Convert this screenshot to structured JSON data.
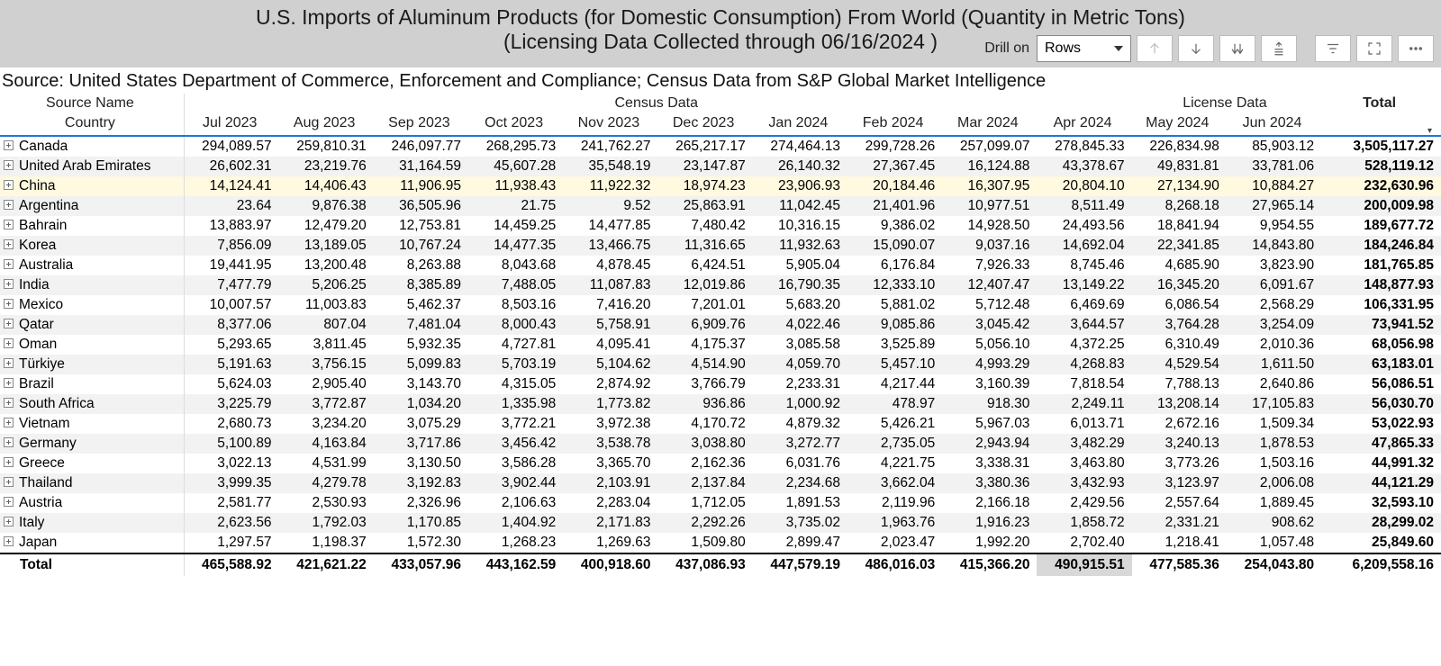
{
  "title": {
    "line1": "U.S. Imports of Aluminum Products (for Domestic Consumption) From World  (Quantity in Metric Tons)",
    "line2": "(Licensing Data Collected through 06/16/2024 )"
  },
  "toolbar": {
    "drill_label": "Drill on",
    "drill_value": "Rows"
  },
  "source": "Source: United States Department of Commerce, Enforcement and Compliance; Census Data from S&P Global Market Intelligence",
  "headers": {
    "left_top": "Source Name",
    "left_bottom": "Country",
    "census_group": "Census Data",
    "license_group": "License Data",
    "total": "Total",
    "months": [
      "Jul 2023",
      "Aug 2023",
      "Sep 2023",
      "Oct 2023",
      "Nov 2023",
      "Dec 2023",
      "Jan 2024",
      "Feb 2024",
      "Mar 2024",
      "Apr 2024",
      "May 2024",
      "Jun 2024"
    ]
  },
  "highlight_row_index": 2,
  "rows": [
    {
      "country": "Canada",
      "v": [
        "294,089.57",
        "259,810.31",
        "246,097.77",
        "268,295.73",
        "241,762.27",
        "265,217.17",
        "274,464.13",
        "299,728.26",
        "257,099.07",
        "278,845.33",
        "226,834.98",
        "85,903.12"
      ],
      "total": "3,505,117.27"
    },
    {
      "country": "United Arab Emirates",
      "v": [
        "26,602.31",
        "23,219.76",
        "31,164.59",
        "45,607.28",
        "35,548.19",
        "23,147.87",
        "26,140.32",
        "27,367.45",
        "16,124.88",
        "43,378.67",
        "49,831.81",
        "33,781.06"
      ],
      "total": "528,119.12"
    },
    {
      "country": "China",
      "v": [
        "14,124.41",
        "14,406.43",
        "11,906.95",
        "11,938.43",
        "11,922.32",
        "18,974.23",
        "23,906.93",
        "20,184.46",
        "16,307.95",
        "20,804.10",
        "27,134.90",
        "10,884.27"
      ],
      "total": "232,630.96"
    },
    {
      "country": "Argentina",
      "v": [
        "23.64",
        "9,876.38",
        "36,505.96",
        "21.75",
        "9.52",
        "25,863.91",
        "11,042.45",
        "21,401.96",
        "10,977.51",
        "8,511.49",
        "8,268.18",
        "27,965.14"
      ],
      "total": "200,009.98"
    },
    {
      "country": "Bahrain",
      "v": [
        "13,883.97",
        "12,479.20",
        "12,753.81",
        "14,459.25",
        "14,477.85",
        "7,480.42",
        "10,316.15",
        "9,386.02",
        "14,928.50",
        "24,493.56",
        "18,841.94",
        "9,954.55"
      ],
      "total": "189,677.72"
    },
    {
      "country": "Korea",
      "v": [
        "7,856.09",
        "13,189.05",
        "10,767.24",
        "14,477.35",
        "13,466.75",
        "11,316.65",
        "11,932.63",
        "15,090.07",
        "9,037.16",
        "14,692.04",
        "22,341.85",
        "14,843.80"
      ],
      "total": "184,246.84"
    },
    {
      "country": "Australia",
      "v": [
        "19,441.95",
        "13,200.48",
        "8,263.88",
        "8,043.68",
        "4,878.45",
        "6,424.51",
        "5,905.04",
        "6,176.84",
        "7,926.33",
        "8,745.46",
        "4,685.90",
        "3,823.90"
      ],
      "total": "181,765.85"
    },
    {
      "country": "India",
      "v": [
        "7,477.79",
        "5,206.25",
        "8,385.89",
        "7,488.05",
        "11,087.83",
        "12,019.86",
        "16,790.35",
        "12,333.10",
        "12,407.47",
        "13,149.22",
        "16,345.20",
        "6,091.67"
      ],
      "total": "148,877.93"
    },
    {
      "country": "Mexico",
      "v": [
        "10,007.57",
        "11,003.83",
        "5,462.37",
        "8,503.16",
        "7,416.20",
        "7,201.01",
        "5,683.20",
        "5,881.02",
        "5,712.48",
        "6,469.69",
        "6,086.54",
        "2,568.29"
      ],
      "total": "106,331.95"
    },
    {
      "country": "Qatar",
      "v": [
        "8,377.06",
        "807.04",
        "7,481.04",
        "8,000.43",
        "5,758.91",
        "6,909.76",
        "4,022.46",
        "9,085.86",
        "3,045.42",
        "3,644.57",
        "3,764.28",
        "3,254.09"
      ],
      "total": "73,941.52"
    },
    {
      "country": "Oman",
      "v": [
        "5,293.65",
        "3,811.45",
        "5,932.35",
        "4,727.81",
        "4,095.41",
        "4,175.37",
        "3,085.58",
        "3,525.89",
        "5,056.10",
        "4,372.25",
        "6,310.49",
        "2,010.36"
      ],
      "total": "68,056.98"
    },
    {
      "country": "Türkiye",
      "v": [
        "5,191.63",
        "3,756.15",
        "5,099.83",
        "5,703.19",
        "5,104.62",
        "4,514.90",
        "4,059.70",
        "5,457.10",
        "4,993.29",
        "4,268.83",
        "4,529.54",
        "1,611.50"
      ],
      "total": "63,183.01"
    },
    {
      "country": "Brazil",
      "v": [
        "5,624.03",
        "2,905.40",
        "3,143.70",
        "4,315.05",
        "2,874.92",
        "3,766.79",
        "2,233.31",
        "4,217.44",
        "3,160.39",
        "7,818.54",
        "7,788.13",
        "2,640.86"
      ],
      "total": "56,086.51"
    },
    {
      "country": "South Africa",
      "v": [
        "3,225.79",
        "3,772.87",
        "1,034.20",
        "1,335.98",
        "1,773.82",
        "936.86",
        "1,000.92",
        "478.97",
        "918.30",
        "2,249.11",
        "13,208.14",
        "17,105.83"
      ],
      "total": "56,030.70"
    },
    {
      "country": "Vietnam",
      "v": [
        "2,680.73",
        "3,234.20",
        "3,075.29",
        "3,772.21",
        "3,972.38",
        "4,170.72",
        "4,879.32",
        "5,426.21",
        "5,967.03",
        "6,013.71",
        "2,672.16",
        "1,509.34"
      ],
      "total": "53,022.93"
    },
    {
      "country": "Germany",
      "v": [
        "5,100.89",
        "4,163.84",
        "3,717.86",
        "3,456.42",
        "3,538.78",
        "3,038.80",
        "3,272.77",
        "2,735.05",
        "2,943.94",
        "3,482.29",
        "3,240.13",
        "1,878.53"
      ],
      "total": "47,865.33"
    },
    {
      "country": "Greece",
      "v": [
        "3,022.13",
        "4,531.99",
        "3,130.50",
        "3,586.28",
        "3,365.70",
        "2,162.36",
        "6,031.76",
        "4,221.75",
        "3,338.31",
        "3,463.80",
        "3,773.26",
        "1,503.16"
      ],
      "total": "44,991.32"
    },
    {
      "country": "Thailand",
      "v": [
        "3,999.35",
        "4,279.78",
        "3,192.83",
        "3,902.44",
        "2,103.91",
        "2,137.84",
        "2,234.68",
        "3,662.04",
        "3,380.36",
        "3,432.93",
        "3,123.97",
        "2,006.08"
      ],
      "total": "44,121.29"
    },
    {
      "country": "Austria",
      "v": [
        "2,581.77",
        "2,530.93",
        "2,326.96",
        "2,106.63",
        "2,283.04",
        "1,712.05",
        "1,891.53",
        "2,119.96",
        "2,166.18",
        "2,429.56",
        "2,557.64",
        "1,889.45"
      ],
      "total": "32,593.10"
    },
    {
      "country": "Italy",
      "v": [
        "2,623.56",
        "1,792.03",
        "1,170.85",
        "1,404.92",
        "2,171.83",
        "2,292.26",
        "3,735.02",
        "1,963.76",
        "1,916.23",
        "1,858.72",
        "2,331.21",
        "908.62"
      ],
      "total": "28,299.02"
    },
    {
      "country": "Japan",
      "v": [
        "1,297.57",
        "1,198.37",
        "1,572.30",
        "1,268.23",
        "1,269.63",
        "1,509.80",
        "2,899.47",
        "2,023.47",
        "1,992.20",
        "2,702.40",
        "1,218.41",
        "1,057.48"
      ],
      "total": "25,849.60"
    }
  ],
  "totals": {
    "label": "Total",
    "v": [
      "465,588.92",
      "421,621.22",
      "433,057.96",
      "443,162.59",
      "400,918.60",
      "437,086.93",
      "447,579.19",
      "486,016.03",
      "415,366.20",
      "490,915.51",
      "477,585.36",
      "254,043.80"
    ],
    "total": "6,209,558.16"
  },
  "style": {
    "header_bg": "#d0d0d0",
    "stripe_bg": "#f2f2f2",
    "highlight_bg": "#fff9df",
    "header_underline": "#1f77d4",
    "apr_total_bg": "#d8d8d8"
  }
}
